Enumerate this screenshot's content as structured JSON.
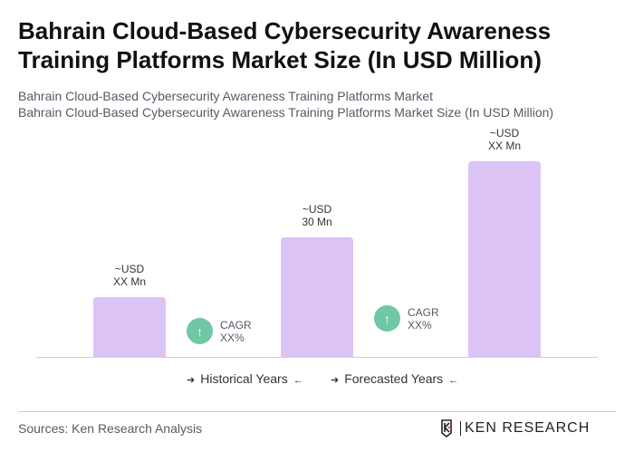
{
  "title": "Bahrain Cloud-Based Cybersecurity Awareness Training Platforms Market Size (In USD Million)",
  "subtitle1": "Bahrain Cloud-Based Cybersecurity Awareness Training Platforms Market",
  "subtitle2": "Bahrain Cloud-Based Cybersecurity Awareness Training Platforms Market Size (In USD Million)",
  "chart_data": {
    "type": "bar",
    "categories": [
      "",
      "",
      ""
    ],
    "values": [
      15,
      30,
      49
    ],
    "data_labels": [
      [
        "~USD",
        "XX Mn"
      ],
      [
        "~USD",
        "30 Mn"
      ],
      [
        "~USD",
        "XX Mn"
      ]
    ],
    "bar_color": "#dcc3f6",
    "cagr": [
      {
        "label": "CAGR",
        "value": "XX%"
      },
      {
        "label": "CAGR",
        "value": "XX%"
      }
    ],
    "cagr_color": "#6fc7a3",
    "legend": [
      "Historical Years",
      "Forecasted Years"
    ],
    "grid": false
  },
  "source": "Sources: Ken Research Analysis",
  "logo_text": "KEN RESEARCH"
}
